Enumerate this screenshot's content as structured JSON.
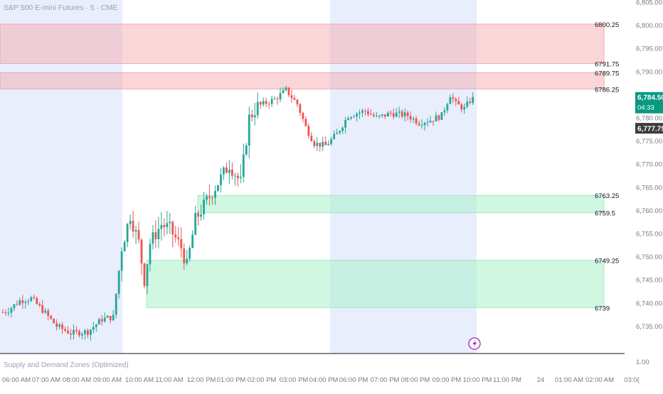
{
  "header": {
    "symbol_title": "S&P 500 E-mini Futures · 5 · CME"
  },
  "indicator": {
    "name": "Supply and Demand Zones (Optimized)"
  },
  "colors": {
    "up": "#26a69a",
    "down": "#ef5350",
    "supply_zone": "#f7a3ab",
    "demand_zone": "#a8f0c8",
    "session_highlight": "#e8eefc",
    "current_price_tag": "#089981",
    "prev_close_tag": "#3b3b3b"
  },
  "chart_data": {
    "type": "candlestick",
    "title": "S&P 500 E-mini Futures · 5 · CME",
    "ylim": [
      6732,
      6805
    ],
    "y_axis_ticks": [
      "6,805.00",
      "6,800.00",
      "6,795.00",
      "6,790.00",
      "6,785.00",
      "6,780.00",
      "6,775.00",
      "6,770.00",
      "6,765.00",
      "6,760.00",
      "6,755.00",
      "6,750.00",
      "6,745.00",
      "6,740.00",
      "6,735.00"
    ],
    "y_axis_bottom_label": "1.00",
    "x_axis_labels": [
      "06:00 AM",
      "07:00 AM",
      "08:00 AM",
      "09:00 AM",
      "10:00 AM",
      "11:00 AM",
      "12:00 PM",
      "01:00 PM",
      "02:00 PM",
      "03:00 PM",
      "04:00 PM",
      "06:00 PM",
      "07:00 PM",
      "08:00 PM",
      "09:00 PM",
      "10:00 PM",
      "11:00 PM",
      "24",
      "01:00 AM",
      "02:00 AM",
      "03:0("
    ],
    "current_price": {
      "price": "6,784.50",
      "countdown": "04:33",
      "value": 6784.5
    },
    "previous_close": {
      "price": "6,777.75",
      "value": 6777.75
    },
    "supply_zones": [
      {
        "top": 6800.25,
        "bottom": 6791.75,
        "top_label": "6800.25",
        "bottom_label": "6791.75"
      },
      {
        "top": 6789.75,
        "bottom": 6786.25,
        "top_label": "6789.75",
        "bottom_label": "6786.25"
      }
    ],
    "demand_zones": [
      {
        "top": 6763.25,
        "bottom": 6759.5,
        "top_label": "6763.25",
        "bottom_label": "6759.5"
      },
      {
        "top": 6749.25,
        "bottom": 6739,
        "top_label": "6749.25",
        "bottom_label": "6739"
      }
    ],
    "session_shading": [
      {
        "from_label": "start",
        "to_label": "10:00 AM"
      },
      {
        "from_label": "04:00 PM",
        "to_label": "10:00 PM"
      }
    ],
    "waypoints": [
      {
        "t": 0,
        "p": 6738.0
      },
      {
        "t": 2,
        "p": 6738.5
      },
      {
        "t": 6,
        "p": 6740.5
      },
      {
        "t": 10,
        "p": 6741.0
      },
      {
        "t": 14,
        "p": 6738.5
      },
      {
        "t": 19,
        "p": 6735.0
      },
      {
        "t": 24,
        "p": 6733.5
      },
      {
        "t": 30,
        "p": 6733.8
      },
      {
        "t": 35,
        "p": 6736.5
      },
      {
        "t": 39,
        "p": 6737.0
      },
      {
        "t": 42,
        "p": 6752.0
      },
      {
        "t": 45,
        "p": 6759.0
      },
      {
        "t": 48,
        "p": 6753.0
      },
      {
        "t": 50,
        "p": 6745.0
      },
      {
        "t": 52,
        "p": 6753.0
      },
      {
        "t": 56,
        "p": 6757.0
      },
      {
        "t": 59,
        "p": 6756.0
      },
      {
        "t": 63,
        "p": 6752.0
      },
      {
        "t": 65,
        "p": 6748.0
      },
      {
        "t": 68,
        "p": 6758.0
      },
      {
        "t": 72,
        "p": 6762.0
      },
      {
        "t": 76,
        "p": 6766.0
      },
      {
        "t": 80,
        "p": 6770.0
      },
      {
        "t": 84,
        "p": 6766.0
      },
      {
        "t": 87,
        "p": 6780.0
      },
      {
        "t": 90,
        "p": 6782.5
      },
      {
        "t": 96,
        "p": 6784.0
      },
      {
        "t": 100,
        "p": 6786.0
      },
      {
        "t": 104,
        "p": 6783.0
      },
      {
        "t": 107,
        "p": 6778.0
      },
      {
        "t": 110,
        "p": 6774.5
      },
      {
        "t": 114,
        "p": 6774.0
      },
      {
        "t": 118,
        "p": 6776.5
      },
      {
        "t": 122,
        "p": 6780.5
      },
      {
        "t": 128,
        "p": 6781.5
      },
      {
        "t": 132,
        "p": 6780.0
      },
      {
        "t": 137,
        "p": 6781.0
      },
      {
        "t": 143,
        "p": 6780.5
      },
      {
        "t": 147,
        "p": 6779.0
      },
      {
        "t": 151,
        "p": 6779.5
      },
      {
        "t": 155,
        "p": 6780.5
      },
      {
        "t": 158,
        "p": 6785.0
      },
      {
        "t": 160,
        "p": 6783.0
      },
      {
        "t": 163,
        "p": 6782.0
      },
      {
        "t": 166,
        "p": 6784.5
      }
    ]
  }
}
